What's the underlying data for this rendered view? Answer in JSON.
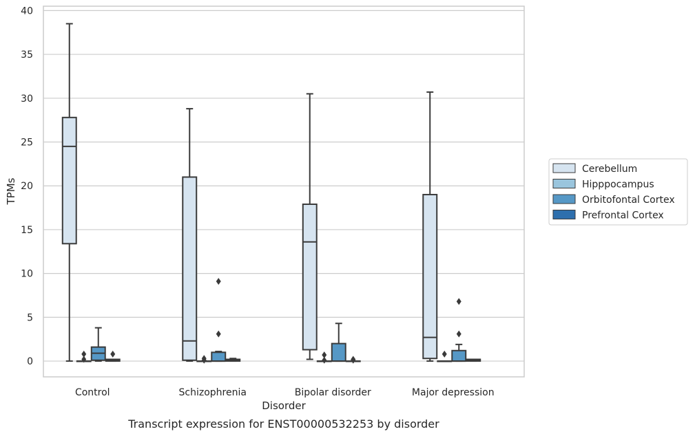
{
  "chart_data": {
    "type": "box",
    "caption": "Transcript expression for ENST00000532253 by disorder",
    "xlabel": "Disorder",
    "ylabel": "TPMs",
    "ylim": [
      -1.8,
      40.5
    ],
    "yticks": [
      0,
      5,
      10,
      15,
      20,
      25,
      30,
      35,
      40
    ],
    "grid": true,
    "legend_position": "right",
    "categories": [
      "Control",
      "Schizophrenia",
      "Bipolar disorder",
      "Major depression"
    ],
    "series": [
      {
        "name": "Cerebellum",
        "color": "#d6e4f0",
        "boxes": [
          {
            "whisker_low": 0.0,
            "q1": 13.4,
            "median": 24.5,
            "q3": 27.8,
            "whisker_high": 38.5,
            "outliers": []
          },
          {
            "whisker_low": 0.0,
            "q1": 0.1,
            "median": 2.3,
            "q3": 21.0,
            "whisker_high": 28.8,
            "outliers": []
          },
          {
            "whisker_low": 0.2,
            "q1": 1.3,
            "median": 13.6,
            "q3": 17.9,
            "whisker_high": 30.5,
            "outliers": []
          },
          {
            "whisker_low": 0.0,
            "q1": 0.3,
            "median": 2.7,
            "q3": 19.0,
            "whisker_high": 30.7,
            "outliers": []
          }
        ]
      },
      {
        "name": "Hipppocampus",
        "color": "#9ac5dd",
        "boxes": [
          {
            "whisker_low": 0.0,
            "q1": 0.0,
            "median": 0.0,
            "q3": 0.0,
            "whisker_high": 0.0,
            "outliers": [
              0.2,
              0.8
            ]
          },
          {
            "whisker_low": 0.0,
            "q1": 0.0,
            "median": 0.0,
            "q3": 0.0,
            "whisker_high": 0.0,
            "outliers": [
              0.1,
              0.3
            ]
          },
          {
            "whisker_low": 0.0,
            "q1": 0.0,
            "median": 0.0,
            "q3": 0.0,
            "whisker_high": 0.0,
            "outliers": [
              0.1,
              0.7
            ]
          },
          {
            "whisker_low": 0.0,
            "q1": 0.0,
            "median": 0.0,
            "q3": 0.0,
            "whisker_high": 0.0,
            "outliers": [
              0.8
            ]
          }
        ]
      },
      {
        "name": "Orbitofontal Cortex",
        "color": "#5698c6",
        "boxes": [
          {
            "whisker_low": 0.0,
            "q1": 0.1,
            "median": 0.9,
            "q3": 1.6,
            "whisker_high": 3.8,
            "outliers": []
          },
          {
            "whisker_low": 0.0,
            "q1": 0.0,
            "median": 0.0,
            "q3": 1.0,
            "whisker_high": 1.1,
            "outliers": [
              3.1,
              9.1
            ]
          },
          {
            "whisker_low": 0.0,
            "q1": 0.0,
            "median": 0.0,
            "q3": 2.0,
            "whisker_high": 4.3,
            "outliers": []
          },
          {
            "whisker_low": 0.0,
            "q1": 0.0,
            "median": 0.0,
            "q3": 1.2,
            "whisker_high": 1.9,
            "outliers": [
              3.1,
              6.8
            ]
          }
        ]
      },
      {
        "name": "Prefrontal Cortex",
        "color": "#2e6fad",
        "boxes": [
          {
            "whisker_low": 0.0,
            "q1": 0.0,
            "median": 0.1,
            "q3": 0.2,
            "whisker_high": 0.2,
            "outliers": [
              0.8
            ]
          },
          {
            "whisker_low": 0.0,
            "q1": 0.0,
            "median": 0.1,
            "q3": 0.2,
            "whisker_high": 0.3,
            "outliers": []
          },
          {
            "whisker_low": 0.0,
            "q1": 0.0,
            "median": 0.0,
            "q3": 0.0,
            "whisker_high": 0.0,
            "outliers": [
              0.1,
              0.2
            ]
          },
          {
            "whisker_low": 0.0,
            "q1": 0.0,
            "median": 0.1,
            "q3": 0.2,
            "whisker_high": 0.2,
            "outliers": []
          }
        ]
      }
    ]
  }
}
